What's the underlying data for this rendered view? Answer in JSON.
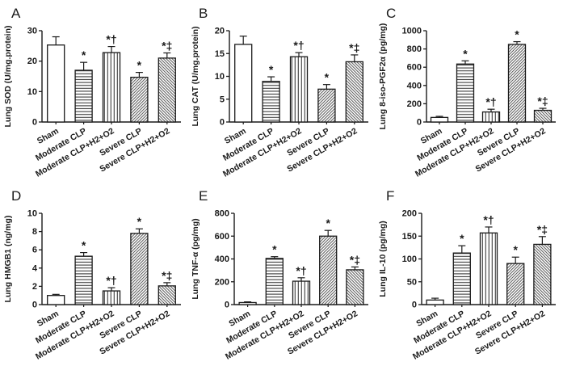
{
  "figure": {
    "background": "#ffffff",
    "axis_color": "#1a1a1a",
    "pattern_color": "#3d3d3d",
    "bar_outline_color": "#1a1a1a",
    "categories": [
      "Sham",
      "Moderate CLP",
      "Moderate CLP+H2+O2",
      "Severe CLP",
      "Severe CLP+H2+O2"
    ],
    "bar_patterns": [
      "plain",
      "horizontal-lines",
      "vertical-lines",
      "diagonal-up",
      "diagonal-down"
    ]
  },
  "chart_data": [
    {
      "type": "bar",
      "panel": "A",
      "ylabel": "Lung SOD (U/mg.protein)",
      "xlabel": "",
      "ylim": [
        0,
        30
      ],
      "yticks": [
        0,
        10,
        20,
        30
      ],
      "categories": [
        "Sham",
        "Moderate CLP",
        "Moderate CLP+H2+O2",
        "Severe CLP",
        "Severe CLP+H2+O2"
      ],
      "values": [
        25.3,
        17.0,
        22.8,
        14.7,
        21.0
      ],
      "errors": [
        2.7,
        2.6,
        2.0,
        1.6,
        1.7
      ],
      "annotations": [
        "",
        "*",
        "*†",
        "*",
        "*‡"
      ]
    },
    {
      "type": "bar",
      "panel": "B",
      "ylabel": "Lung CAT (U/mg.protein)",
      "xlabel": "",
      "ylim": [
        0,
        20
      ],
      "yticks": [
        0,
        5,
        10,
        15,
        20
      ],
      "categories": [
        "Sham",
        "Moderate CLP",
        "Moderate CLP+H2+O2",
        "Severe CLP",
        "Severe CLP+H2+O2"
      ],
      "values": [
        17.0,
        8.9,
        14.3,
        7.2,
        13.2
      ],
      "errors": [
        1.8,
        1.0,
        0.9,
        1.0,
        1.5
      ],
      "annotations": [
        "",
        "*",
        "*†",
        "*",
        "*‡"
      ]
    },
    {
      "type": "bar",
      "panel": "C",
      "ylabel": "Lung 8-iso-PGF2α (pg/mg)",
      "xlabel": "",
      "ylim": [
        0,
        1000
      ],
      "yticks": [
        0,
        200,
        400,
        600,
        800,
        1000
      ],
      "categories": [
        "Sham",
        "Moderate CLP",
        "Moderate CLP+H2+O2",
        "Severe CLP",
        "Severe CLP+H2+O2"
      ],
      "values": [
        50,
        635,
        110,
        850,
        128
      ],
      "errors": [
        12,
        35,
        30,
        30,
        22
      ],
      "annotations": [
        "",
        "*",
        "*†",
        "*",
        "*‡"
      ]
    },
    {
      "type": "bar",
      "panel": "D",
      "ylabel": "Lung HMGB1 (ng/mg)",
      "xlabel": "",
      "ylim": [
        0,
        10
      ],
      "yticks": [
        0,
        2,
        4,
        6,
        8,
        10
      ],
      "categories": [
        "Sham",
        "Moderate CLP",
        "Moderate CLP+H2+O2",
        "Severe CLP",
        "Severe CLP+H2+O2"
      ],
      "values": [
        1.0,
        5.3,
        1.5,
        7.8,
        2.05
      ],
      "errors": [
        0.12,
        0.4,
        0.35,
        0.5,
        0.35
      ],
      "annotations": [
        "",
        "*",
        "*†",
        "*",
        "*‡"
      ]
    },
    {
      "type": "bar",
      "panel": "E",
      "ylabel": "Lung TNF-α (pg/mg)",
      "xlabel": "",
      "ylim": [
        0,
        800
      ],
      "yticks": [
        0,
        200,
        400,
        600,
        800
      ],
      "categories": [
        "Sham",
        "Moderate CLP",
        "Moderate CLP+H2+O2",
        "Severe CLP",
        "Severe CLP+H2+O2"
      ],
      "values": [
        18,
        405,
        205,
        600,
        305
      ],
      "errors": [
        6,
        15,
        30,
        50,
        25
      ],
      "annotations": [
        "",
        "*",
        "*†",
        "*",
        "*‡"
      ]
    },
    {
      "type": "bar",
      "panel": "F",
      "ylabel": "Lung IL-10 (pg/mg)",
      "xlabel": "",
      "ylim": [
        0,
        200
      ],
      "yticks": [
        0,
        50,
        100,
        150,
        200
      ],
      "categories": [
        "Sham",
        "Moderate CLP",
        "Moderate CLP+H2+O2",
        "Severe CLP",
        "Severe CLP+H2+O2"
      ],
      "values": [
        10,
        113,
        157,
        90,
        132
      ],
      "errors": [
        4,
        16,
        13,
        14,
        17
      ],
      "annotations": [
        "",
        "*",
        "*†",
        "*",
        "*‡"
      ]
    }
  ]
}
